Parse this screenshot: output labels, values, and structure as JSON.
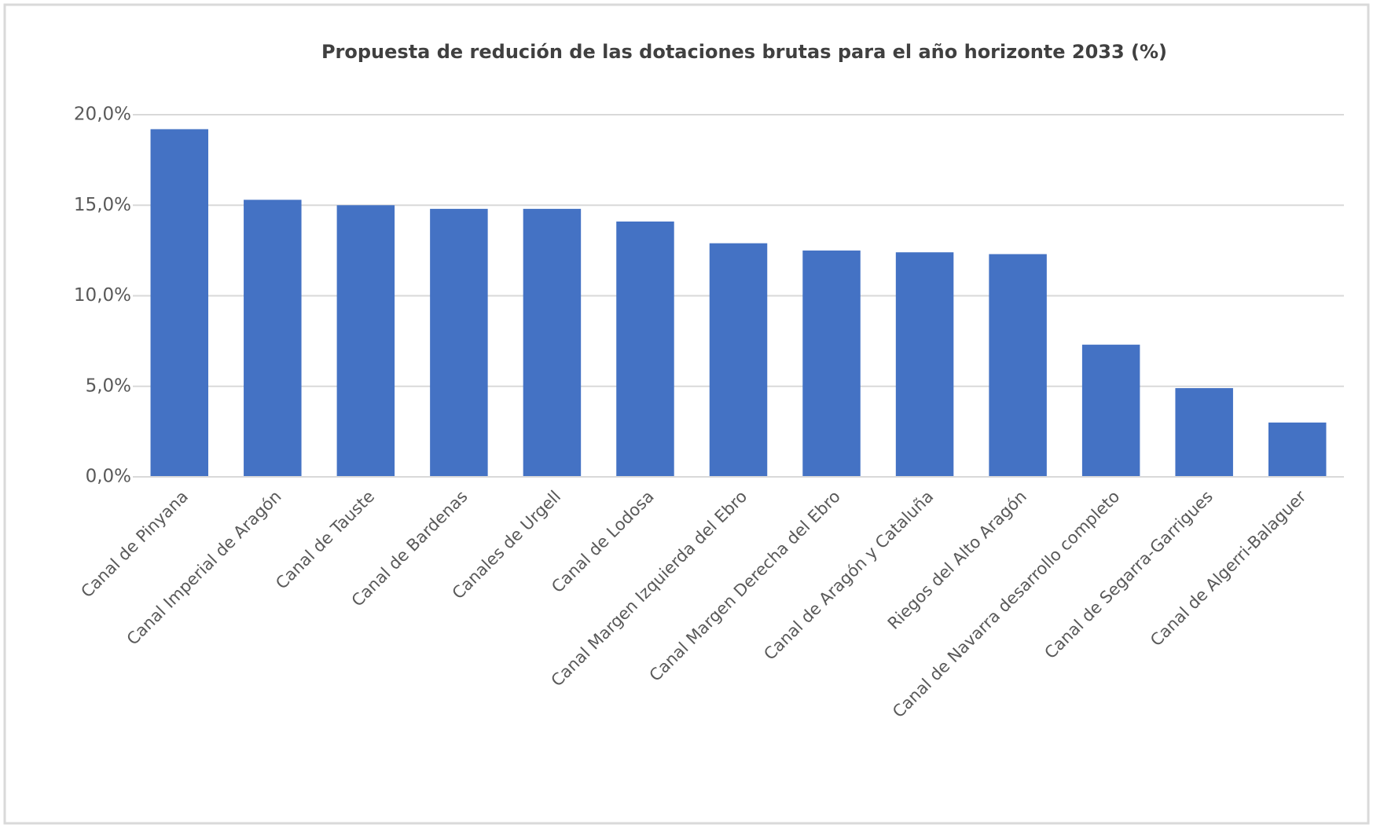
{
  "chart_data": {
    "type": "bar",
    "title": "Propuesta de redución de las dotaciones brutas  para el año horizonte 2033 (%)",
    "categories": [
      "Canal de Pinyana",
      "Canal Imperial de Aragón",
      "Canal de Tauste",
      "Canal de Bardenas",
      "Canales de Urgell",
      "Canal de Lodosa",
      "Canal Margen Izquierda del Ebro",
      "Canal Margen Derecha del Ebro",
      "Canal de Aragón y Cataluña",
      "Riegos del Alto Aragón",
      "Canal de Navarra desarrollo completo",
      "Canal de Segarra-Garrigues",
      "Canal de Algerri-Balaguer"
    ],
    "values": [
      19.2,
      15.3,
      15.0,
      14.8,
      14.8,
      14.1,
      12.9,
      12.5,
      12.4,
      12.3,
      7.3,
      4.9,
      3.0
    ],
    "color": "#4472c4",
    "ylim": [
      0,
      20
    ],
    "yticks": [
      {
        "value": 0,
        "label": "0,0%"
      },
      {
        "value": 5,
        "label": "5,0%"
      },
      {
        "value": 10,
        "label": "10,0%"
      },
      {
        "value": 15,
        "label": "15,0%"
      },
      {
        "value": 20,
        "label": "20,0%"
      }
    ],
    "grid": true
  }
}
